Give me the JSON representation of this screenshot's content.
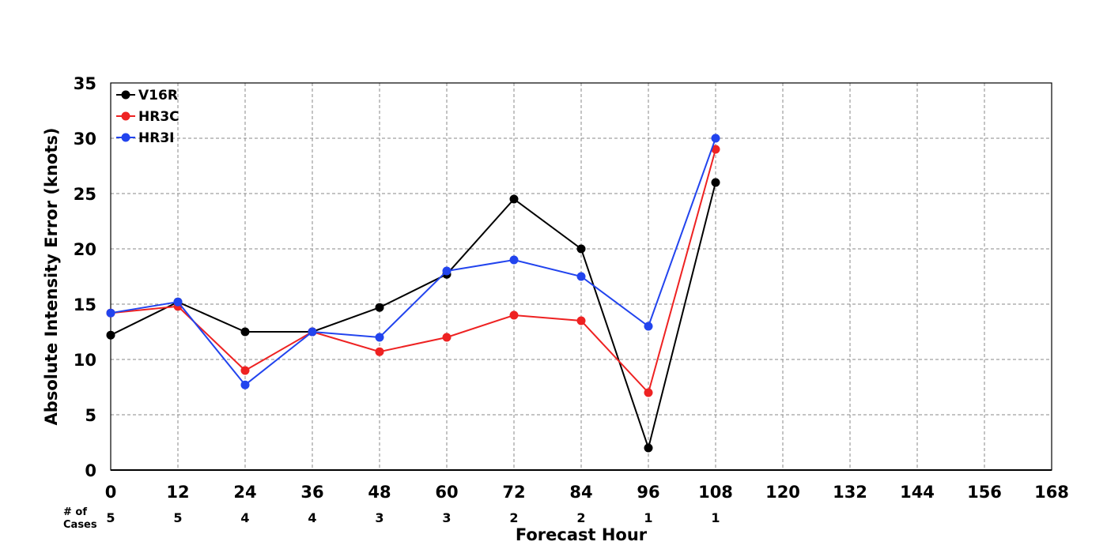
{
  "chart_data": {
    "type": "line",
    "xlabel": "Forecast Hour",
    "ylabel": "Absolute Intensity Error (knots)",
    "xlim": [
      0,
      168
    ],
    "ylim": [
      0,
      35
    ],
    "x_ticks": [
      0,
      12,
      24,
      36,
      48,
      60,
      72,
      84,
      96,
      108,
      120,
      132,
      144,
      156,
      168
    ],
    "y_ticks": [
      0,
      5,
      10,
      15,
      20,
      25,
      30,
      35
    ],
    "grid": true,
    "legend_position": "top-left",
    "x": [
      0,
      12,
      24,
      36,
      48,
      60,
      72,
      84,
      96,
      108
    ],
    "series": [
      {
        "name": "V16R",
        "color": "#000000",
        "values": [
          12.2,
          15.2,
          12.5,
          12.5,
          14.7,
          17.7,
          24.5,
          20.0,
          2.0,
          26.0
        ]
      },
      {
        "name": "HR3C",
        "color": "#ee2222",
        "values": [
          14.2,
          14.8,
          9.0,
          12.5,
          10.7,
          12.0,
          14.0,
          13.5,
          7.0,
          29.0
        ]
      },
      {
        "name": "HR3I",
        "color": "#2244ee",
        "values": [
          14.2,
          15.2,
          7.7,
          12.5,
          12.0,
          18.0,
          19.0,
          17.5,
          13.0,
          30.0
        ]
      }
    ],
    "cases_label": "# of Cases",
    "cases_label_lines": [
      "# of",
      "Cases"
    ],
    "cases": [
      5,
      5,
      4,
      4,
      3,
      3,
      2,
      2,
      1,
      1
    ]
  }
}
